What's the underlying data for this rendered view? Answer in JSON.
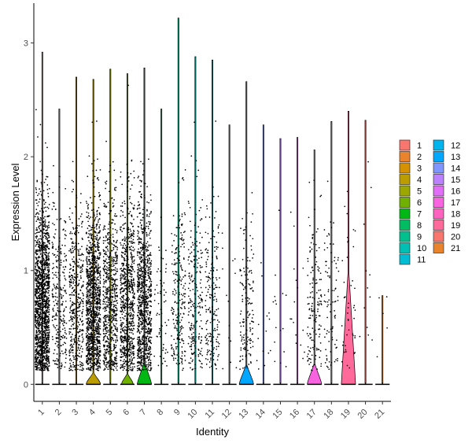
{
  "chart_data": {
    "type": "violin",
    "xlabel": "Identity",
    "ylabel": "Expression Level",
    "categories": [
      "1",
      "2",
      "3",
      "4",
      "5",
      "6",
      "7",
      "8",
      "9",
      "10",
      "11",
      "12",
      "13",
      "14",
      "15",
      "16",
      "17",
      "18",
      "19",
      "20",
      "21"
    ],
    "ylim": [
      -0.15,
      3.35
    ],
    "yticks": [
      0,
      1,
      2,
      3
    ],
    "colors": [
      "#F8766D",
      "#E9842C",
      "#D69100",
      "#BC9D00",
      "#9CA700",
      "#6FB000",
      "#00B813",
      "#00BD61",
      "#00C08E",
      "#00C0B4",
      "#00BDD4",
      "#00B5EE",
      "#00A7FF",
      "#7F96FF",
      "#BC81FF",
      "#E26EF7",
      "#F863DF",
      "#FF62BF",
      "#FF6A9A",
      "#F8766D",
      "#E9842C"
    ],
    "legend_labels": [
      "1",
      "2",
      "3",
      "4",
      "5",
      "6",
      "7",
      "8",
      "9",
      "10",
      "11",
      "12",
      "13",
      "14",
      "15",
      "16",
      "17",
      "18",
      "19",
      "20",
      "21"
    ],
    "max_values": [
      2.92,
      2.42,
      2.7,
      2.68,
      2.77,
      2.73,
      2.78,
      2.42,
      3.22,
      2.88,
      2.85,
      2.28,
      2.66,
      2.28,
      2.16,
      2.17,
      2.06,
      2.31,
      2.4,
      2.32,
      0.78
    ],
    "points_per_group": [
      1500,
      260,
      420,
      1200,
      680,
      760,
      900,
      60,
      230,
      230,
      190,
      14,
      150,
      14,
      16,
      16,
      150,
      90,
      45,
      12,
      5
    ],
    "violin_height": [
      0.01,
      0.01,
      0.01,
      0.1,
      0.01,
      0.09,
      0.19,
      0.01,
      0.01,
      0.01,
      0.01,
      0.01,
      0.17,
      0.01,
      0.01,
      0.01,
      0.18,
      0.01,
      0.98,
      0.01,
      0.01
    ],
    "violin_width": [
      0.02,
      0.02,
      0.02,
      0.42,
      0.02,
      0.34,
      0.42,
      0.02,
      0.02,
      0.02,
      0.02,
      0.02,
      0.42,
      0.02,
      0.02,
      0.02,
      0.42,
      0.02,
      0.42,
      0.02,
      0.02
    ]
  }
}
